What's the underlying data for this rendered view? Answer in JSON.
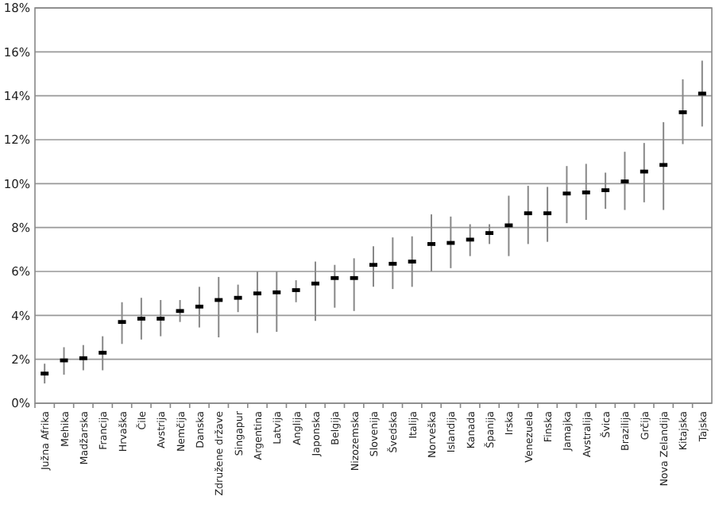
{
  "chart_data": {
    "type": "scatter",
    "categories": [
      "Južna Afrika",
      "Mehika",
      "Madžarska",
      "Francija",
      "Hrvaška",
      "Čile",
      "Avstrija",
      "Nemčija",
      "Danska",
      "Združene države",
      "Singapur",
      "Argentina",
      "Latvija",
      "Anglija",
      "Japonska",
      "Belgija",
      "Nizozemska",
      "Slovenija",
      "Švedska",
      "Italija",
      "Norveška",
      "Islandija",
      "Kanada",
      "Španija",
      "Irska",
      "Venezuela",
      "Finska",
      "Jamajka",
      "Avstralija",
      "Švica",
      "Brazilija",
      "Grčija",
      "Nova Zelandija",
      "Kitajska",
      "Tajska"
    ],
    "series": [
      {
        "color": "#000000",
        "values": [
          1.35,
          1.95,
          2.05,
          2.3,
          3.7,
          3.85,
          3.85,
          4.2,
          4.4,
          4.7,
          4.8,
          5.0,
          5.05,
          5.15,
          5.45,
          5.7,
          5.7,
          6.3,
          6.35,
          6.45,
          7.25,
          7.3,
          7.45,
          7.75,
          8.1,
          8.65,
          8.65,
          9.55,
          9.6,
          9.7,
          10.1,
          10.55,
          10.85,
          13.25,
          14.1
        ],
        "errors": [
          [
            0.9,
            1.8
          ],
          [
            1.3,
            2.55
          ],
          [
            1.5,
            2.65
          ],
          [
            1.5,
            3.05
          ],
          [
            2.7,
            4.6
          ],
          [
            2.9,
            4.8
          ],
          [
            3.05,
            4.7
          ],
          [
            3.7,
            4.7
          ],
          [
            3.45,
            5.3
          ],
          [
            3.0,
            5.75
          ],
          [
            4.15,
            5.4
          ],
          [
            3.2,
            6.0
          ],
          [
            3.25,
            6.0
          ],
          [
            4.6,
            5.6
          ],
          [
            3.75,
            6.45
          ],
          [
            4.35,
            6.3
          ],
          [
            4.2,
            6.6
          ],
          [
            5.3,
            7.15
          ],
          [
            5.2,
            7.55
          ],
          [
            5.3,
            7.6
          ],
          [
            6.0,
            8.6
          ],
          [
            6.15,
            8.5
          ],
          [
            6.7,
            8.15
          ],
          [
            7.25,
            8.15
          ],
          [
            6.7,
            9.45
          ],
          [
            7.25,
            9.9
          ],
          [
            7.35,
            9.85
          ],
          [
            8.2,
            10.8
          ],
          [
            8.35,
            10.9
          ],
          [
            8.85,
            10.5
          ],
          [
            8.8,
            11.45
          ],
          [
            9.15,
            11.85
          ],
          [
            8.8,
            12.8
          ],
          [
            11.8,
            14.75
          ],
          [
            12.6,
            15.6
          ]
        ]
      }
    ],
    "ylim": [
      0,
      18
    ],
    "yticks": [
      {
        "value": 0,
        "label": "0%"
      },
      {
        "value": 2,
        "label": "2%"
      },
      {
        "value": 4,
        "label": "4%"
      },
      {
        "value": 6,
        "label": "6%"
      },
      {
        "value": 8,
        "label": "8%"
      },
      {
        "value": 10,
        "label": "10%"
      },
      {
        "value": 12,
        "label": "12%"
      },
      {
        "value": 14,
        "label": "14%"
      },
      {
        "value": 16,
        "label": "16%"
      },
      {
        "value": 18,
        "label": "18%"
      }
    ],
    "grid": "y",
    "marker": "square"
  }
}
